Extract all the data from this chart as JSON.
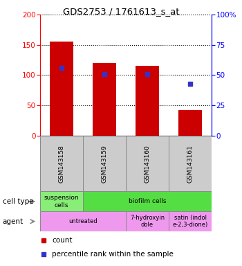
{
  "title": "GDS2753 / 1761613_s_at",
  "samples": [
    "GSM143158",
    "GSM143159",
    "GSM143160",
    "GSM143161"
  ],
  "counts": [
    155,
    120,
    115,
    42
  ],
  "percentile_ranks": [
    56,
    51,
    51,
    43
  ],
  "ylim_left": [
    0,
    200
  ],
  "ylim_right": [
    0,
    100
  ],
  "yticks_left": [
    0,
    50,
    100,
    150,
    200
  ],
  "yticks_right": [
    0,
    25,
    50,
    75,
    100
  ],
  "yticklabels_right": [
    "0",
    "25",
    "50",
    "75",
    "100%"
  ],
  "bar_color": "#cc0000",
  "dot_color": "#3333cc",
  "cell_types": [
    {
      "label": "suspension\ncells",
      "span": [
        0,
        1
      ],
      "color": "#88ee77"
    },
    {
      "label": "biofilm cells",
      "span": [
        1,
        4
      ],
      "color": "#55dd44"
    }
  ],
  "agents": [
    {
      "label": "untreated",
      "span": [
        0,
        2
      ],
      "color": "#ee99ee"
    },
    {
      "label": "7-hydroxyin\ndole",
      "span": [
        2,
        3
      ],
      "color": "#ee99ee"
    },
    {
      "label": "satin (indol\ne-2,3-dione)",
      "span": [
        3,
        4
      ],
      "color": "#ee99ee"
    }
  ],
  "legend_count_color": "#cc0000",
  "legend_dot_color": "#3333cc"
}
